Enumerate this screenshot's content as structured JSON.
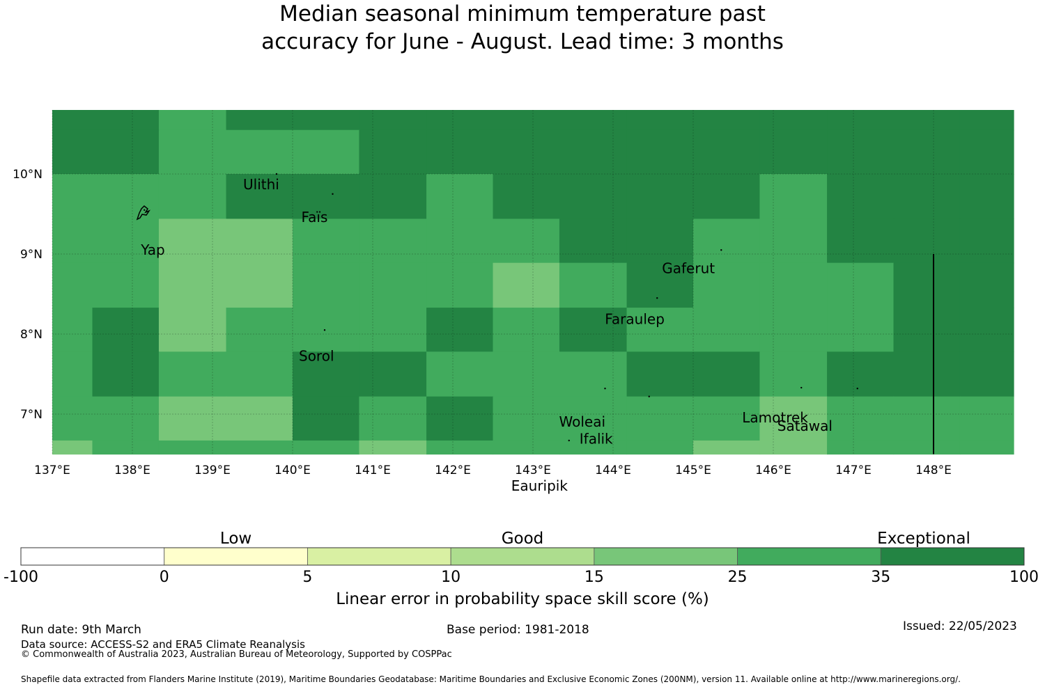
{
  "title": {
    "line1": "Median seasonal minimum temperature past",
    "line2": "accuracy for June - August. Lead time: 3 months"
  },
  "map": {
    "lon_range": [
      137,
      149
    ],
    "lat_range": [
      6.5,
      10.8
    ],
    "grid_lon_edges": [
      137.0,
      137.5,
      138.33,
      139.17,
      140.0,
      140.83,
      141.67,
      142.5,
      143.33,
      144.17,
      145.0,
      145.83,
      146.67,
      147.5,
      148.33,
      149.0
    ],
    "grid_lat_edges": [
      10.8,
      10.55,
      10.0,
      9.44,
      8.89,
      8.33,
      7.78,
      7.22,
      6.67,
      6.5
    ],
    "grid_values": [
      [
        7,
        7,
        6,
        7,
        7,
        7,
        7,
        7,
        7,
        7,
        7,
        7,
        7,
        7,
        7
      ],
      [
        7,
        7,
        6,
        6,
        6,
        7,
        7,
        7,
        7,
        7,
        7,
        7,
        7,
        7,
        7
      ],
      [
        6,
        6,
        6,
        7,
        7,
        7,
        6,
        7,
        7,
        7,
        7,
        6,
        7,
        7,
        7
      ],
      [
        6,
        6,
        5,
        5,
        6,
        6,
        6,
        6,
        7,
        7,
        6,
        6,
        7,
        7,
        7
      ],
      [
        6,
        6,
        5,
        5,
        6,
        6,
        6,
        5,
        6,
        7,
        6,
        6,
        6,
        7,
        7
      ],
      [
        6,
        7,
        5,
        6,
        6,
        6,
        7,
        6,
        7,
        6,
        6,
        6,
        6,
        7,
        7
      ],
      [
        6,
        7,
        6,
        6,
        7,
        7,
        6,
        6,
        6,
        7,
        7,
        6,
        7,
        7,
        7
      ],
      [
        6,
        6,
        5,
        5,
        7,
        6,
        7,
        6,
        6,
        6,
        6,
        5,
        6,
        6,
        6
      ],
      [
        5,
        6,
        6,
        6,
        6,
        5,
        6,
        6,
        6,
        6,
        5,
        5,
        6,
        6,
        6
      ]
    ],
    "x_ticks": [
      "137°E",
      "138°E",
      "139°E",
      "140°E",
      "141°E",
      "142°E",
      "143°E",
      "144°E",
      "145°E",
      "146°E",
      "147°E",
      "148°E"
    ],
    "x_tick_values": [
      137,
      138,
      139,
      140,
      141,
      142,
      143,
      144,
      145,
      146,
      147,
      148
    ],
    "y_ticks": [
      "10°N",
      "9°N",
      "8°N",
      "7°N"
    ],
    "y_tick_values": [
      10,
      9,
      8,
      7
    ],
    "places": [
      {
        "name": "Ulithi",
        "lon": 139.8,
        "lat": 10.0
      },
      {
        "name": "Faïs",
        "lon": 140.5,
        "lat": 9.75
      },
      {
        "name": "Yap",
        "lon": 138.15,
        "lat": 9.55
      },
      {
        "name": "Gaferut",
        "lon": 145.35,
        "lat": 9.05
      },
      {
        "name": "Faraulep",
        "lon": 144.55,
        "lat": 8.45
      },
      {
        "name": "Sorol",
        "lon": 140.4,
        "lat": 8.05
      },
      {
        "name": "Woleai",
        "lon": 143.9,
        "lat": 7.32
      },
      {
        "name": "Ifalik",
        "lon": 144.45,
        "lat": 7.22
      },
      {
        "name": "Lamotrek",
        "lon": 146.35,
        "lat": 7.33
      },
      {
        "name": "Satawal",
        "lon": 147.05,
        "lat": 7.32
      },
      {
        "name": "Eauripik",
        "lon": 143.45,
        "lat": 6.67
      }
    ],
    "boundary_line": {
      "lon": 148.0,
      "lat_from": 9.0,
      "lat_to": 6.5
    }
  },
  "colorbar": {
    "ticks": [
      "-100",
      "0",
      "5",
      "10",
      "15",
      "25",
      "35",
      "100"
    ],
    "colors": [
      "#ffffff",
      "#ffffcc",
      "#d9f0a3",
      "#addd8e",
      "#78c679",
      "#41ab5d",
      "#238443"
    ],
    "categories": [
      "Low",
      "Good",
      "Exceptional"
    ],
    "title": "Linear error in probability space skill score (%)"
  },
  "footer": {
    "run_date": "Run date: 9th March",
    "base_period": "Base period: 1981-2018",
    "issued": "Issued: 22/05/2023",
    "data_source": "Data source: ACCESS-S2 and ERA5 Climate Reanalysis",
    "copyright": "© Commonwealth of Australia 2023, Australian Bureau of Meteorology, Supported by COSPPac",
    "shapefile": "Shapefile data extracted from Flanders Marine Institute (2019), Maritime Boundaries Geodatabase: Maritime Boundaries and Exclusive Economic Zones (200NM), version 11. Available online at http://www.marineregions.org/."
  }
}
